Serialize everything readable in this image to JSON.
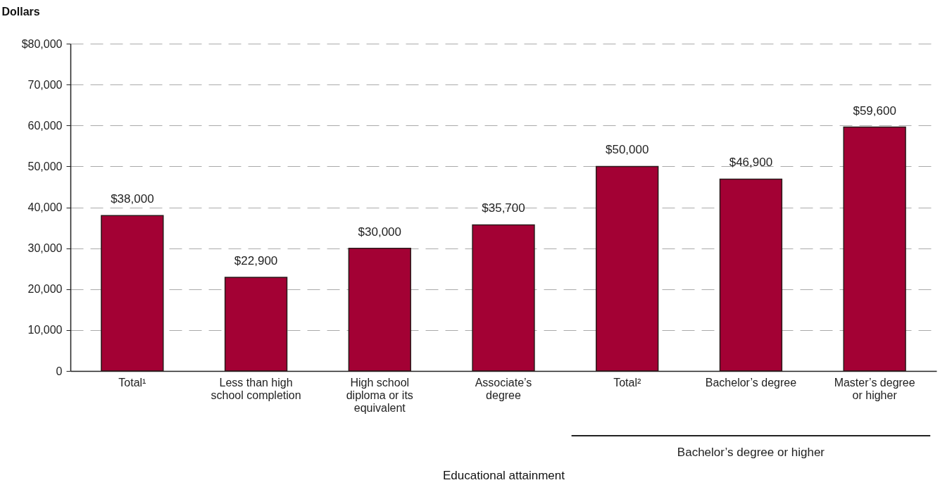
{
  "chart_data": {
    "type": "bar",
    "xlabel": "Educational attainment",
    "ylabel": "Dollars",
    "categories": [
      "Total¹",
      "Less than high school completion",
      "High school diploma or its equivalent",
      "Associate’s degree",
      "Total²",
      "Bachelor’s degree",
      "Master’s degree or higher"
    ],
    "values": [
      38000,
      22900,
      30000,
      35700,
      50000,
      46900,
      59600
    ],
    "value_labels": [
      "$38,000",
      "$22,900",
      "$30,000",
      "$35,700",
      "$50,000",
      "$46,900",
      "$59,600"
    ],
    "color": "#a30134",
    "ylim": [
      0,
      80000
    ],
    "yticks": [
      0,
      {
        "value": 10000,
        "label": "10,000"
      },
      {
        "value": 20000,
        "label": "20,000"
      },
      {
        "value": 30000,
        "label": "30,000"
      },
      {
        "value": 40000,
        "label": "40,000"
      },
      {
        "value": 50000,
        "label": "50,000"
      },
      {
        "value": 60000,
        "label": "60,000"
      },
      {
        "value": 70000,
        "label": "70,000"
      },
      {
        "value": 80000,
        "label": "$80,000"
      }
    ],
    "grid": "y",
    "annotations": [
      "Bachelor’s degree or higher"
    ]
  }
}
